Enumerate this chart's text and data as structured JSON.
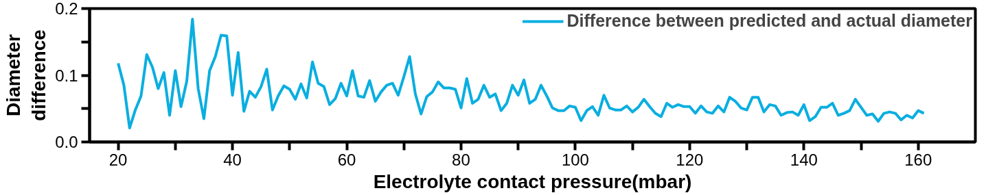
{
  "chart_data": {
    "type": "line",
    "xlabel": "Electrolyte contact pressure(mbar)",
    "ylabel": "Diameter\ndifference",
    "x": [
      20,
      21,
      22,
      23,
      24,
      25,
      26,
      27,
      28,
      29,
      30,
      31,
      32,
      33,
      34,
      35,
      36,
      37,
      38,
      39,
      40,
      41,
      42,
      43,
      44,
      45,
      46,
      47,
      48,
      49,
      50,
      51,
      52,
      53,
      54,
      55,
      56,
      57,
      58,
      59,
      60,
      61,
      62,
      63,
      64,
      65,
      66,
      67,
      68,
      69,
      70,
      71,
      72,
      73,
      74,
      75,
      76,
      77,
      78,
      79,
      80,
      81,
      82,
      83,
      84,
      85,
      86,
      87,
      88,
      89,
      90,
      91,
      92,
      93,
      94,
      95,
      96,
      97,
      98,
      99,
      100,
      101,
      102,
      103,
      104,
      105,
      106,
      107,
      108,
      109,
      110,
      111,
      112,
      113,
      114,
      115,
      116,
      117,
      118,
      119,
      120,
      121,
      122,
      123,
      124,
      125,
      126,
      127,
      128,
      129,
      130,
      131,
      132,
      133,
      134,
      135,
      136,
      137,
      138,
      139,
      140,
      141,
      142,
      143,
      144,
      145,
      146,
      147,
      148,
      149,
      150,
      151,
      152,
      153,
      154,
      155,
      156,
      157,
      158,
      159,
      160,
      161
    ],
    "series": [
      {
        "name": "Difference between predicted and actual diameter",
        "color": "#0aaee0",
        "values": [
          0.118,
          0.085,
          0.021,
          0.048,
          0.069,
          0.131,
          0.112,
          0.08,
          0.104,
          0.04,
          0.107,
          0.053,
          0.091,
          0.184,
          0.08,
          0.035,
          0.107,
          0.128,
          0.16,
          0.159,
          0.07,
          0.134,
          0.046,
          0.076,
          0.067,
          0.083,
          0.109,
          0.048,
          0.069,
          0.084,
          0.079,
          0.064,
          0.087,
          0.066,
          0.12,
          0.088,
          0.083,
          0.056,
          0.065,
          0.088,
          0.069,
          0.107,
          0.069,
          0.067,
          0.092,
          0.061,
          0.075,
          0.085,
          0.088,
          0.07,
          0.098,
          0.128,
          0.072,
          0.042,
          0.068,
          0.075,
          0.09,
          0.081,
          0.081,
          0.079,
          0.051,
          0.095,
          0.058,
          0.064,
          0.085,
          0.067,
          0.072,
          0.047,
          0.058,
          0.085,
          0.07,
          0.093,
          0.058,
          0.064,
          0.085,
          0.069,
          0.051,
          0.047,
          0.047,
          0.054,
          0.052,
          0.032,
          0.047,
          0.053,
          0.04,
          0.07,
          0.051,
          0.048,
          0.048,
          0.054,
          0.045,
          0.052,
          0.064,
          0.053,
          0.043,
          0.038,
          0.058,
          0.052,
          0.056,
          0.053,
          0.053,
          0.043,
          0.054,
          0.045,
          0.043,
          0.054,
          0.045,
          0.067,
          0.061,
          0.051,
          0.048,
          0.067,
          0.067,
          0.045,
          0.056,
          0.054,
          0.04,
          0.044,
          0.045,
          0.04,
          0.056,
          0.032,
          0.038,
          0.052,
          0.052,
          0.058,
          0.04,
          0.043,
          0.047,
          0.064,
          0.052,
          0.04,
          0.042,
          0.031,
          0.043,
          0.045,
          0.043,
          0.033,
          0.04,
          0.036,
          0.047,
          0.043
        ]
      }
    ],
    "xlim": [
      15,
      170
    ],
    "xticks": [
      20,
      {
        "value": 30,
        "label": null
      },
      40,
      {
        "value": 50,
        "label": null
      },
      60,
      {
        "value": 70,
        "label": null
      },
      80,
      {
        "value": 90,
        "label": null
      },
      100,
      {
        "value": 110,
        "label": null
      },
      120,
      {
        "value": 130,
        "label": null
      },
      140,
      {
        "value": 150,
        "label": null
      },
      160
    ],
    "ylim": [
      0,
      0.2
    ],
    "yticks": [
      {
        "value": 0,
        "label": "0.0"
      },
      {
        "value": 0.05,
        "label": null
      },
      0.1,
      {
        "value": 0.15,
        "label": null
      },
      0.2
    ],
    "grid": false,
    "legend": "top right",
    "line_style": "solid",
    "marker": "none"
  }
}
